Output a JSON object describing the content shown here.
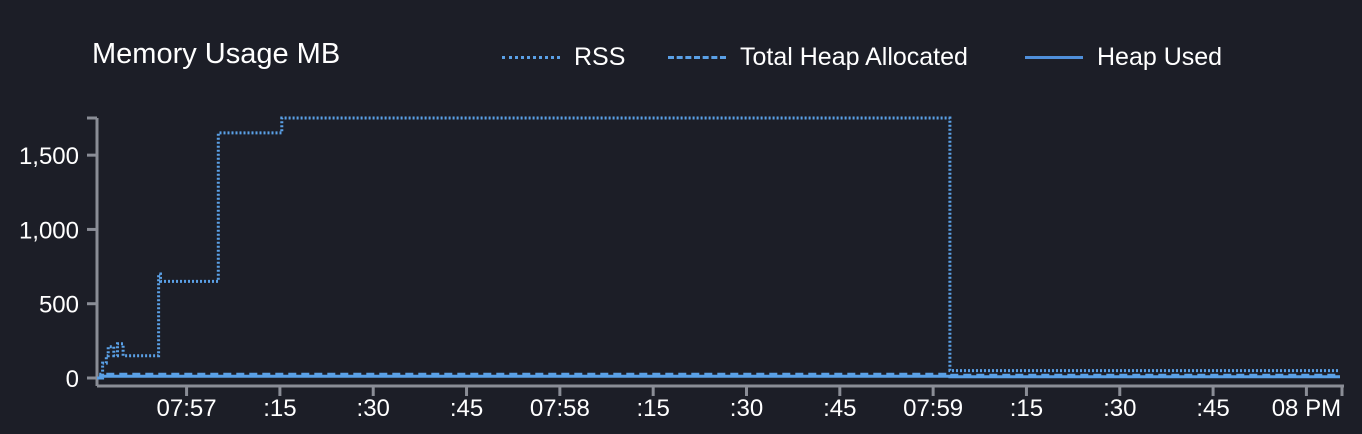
{
  "chart_data": {
    "type": "line",
    "title": "Memory Usage MB",
    "legend_position": "top",
    "colors": {
      "background": "#1c1e27",
      "series": "#5aa0e6",
      "axis": "#8a8d96"
    },
    "ylim": [
      0,
      1750
    ],
    "y_ticks": [
      0,
      500,
      1000,
      1500
    ],
    "y_tick_labels": [
      "0",
      "500",
      "1,000",
      "1,500"
    ],
    "x_ticks": [
      {
        "t": 0.95,
        "label": "07:57"
      },
      {
        "t": 1.2,
        "label": ":15"
      },
      {
        "t": 1.45,
        "label": ":30"
      },
      {
        "t": 1.7,
        "label": ":45"
      },
      {
        "t": 1.95,
        "label": "07:58"
      },
      {
        "t": 2.2,
        "label": ":15"
      },
      {
        "t": 2.45,
        "label": ":30"
      },
      {
        "t": 2.7,
        "label": ":45"
      },
      {
        "t": 2.95,
        "label": "07:59"
      },
      {
        "t": 3.2,
        "label": ":15"
      },
      {
        "t": 3.45,
        "label": ":30"
      },
      {
        "t": 3.7,
        "label": ":45"
      },
      {
        "t": 3.95,
        "label": "08 PM"
      }
    ],
    "x_range": [
      0.71,
      4.04
    ],
    "series": [
      {
        "name": "RSS",
        "style": "dotted",
        "points": [
          [
            0.71,
            0
          ],
          [
            0.725,
            100
          ],
          [
            0.735,
            150
          ],
          [
            0.74,
            210
          ],
          [
            0.755,
            150
          ],
          [
            0.765,
            230
          ],
          [
            0.78,
            150
          ],
          [
            0.87,
            150
          ],
          [
            0.875,
            700
          ],
          [
            0.88,
            650
          ],
          [
            1.03,
            650
          ],
          [
            1.035,
            1650
          ],
          [
            1.2,
            1650
          ],
          [
            1.205,
            1750
          ],
          [
            2.99,
            1750
          ],
          [
            2.995,
            50
          ],
          [
            4.04,
            50
          ]
        ]
      },
      {
        "name": "Total Heap Allocated",
        "style": "dashed",
        "points": [
          [
            0.71,
            0
          ],
          [
            0.72,
            25
          ],
          [
            2.99,
            25
          ],
          [
            2.995,
            18
          ],
          [
            4.04,
            18
          ]
        ]
      },
      {
        "name": "Heap Used",
        "style": "solid",
        "points": [
          [
            0.71,
            0
          ],
          [
            0.72,
            12
          ],
          [
            2.99,
            12
          ],
          [
            2.995,
            8
          ],
          [
            4.04,
            8
          ]
        ]
      }
    ]
  }
}
